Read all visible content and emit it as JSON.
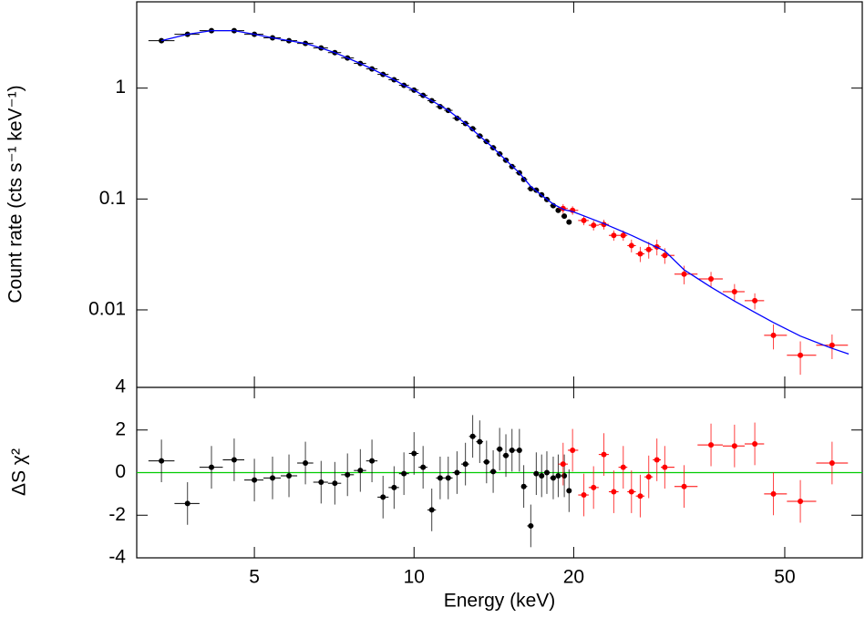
{
  "chart_data": [
    {
      "type": "scatter",
      "ylabel": "Count rate (cts s⁻¹ keV⁻¹)",
      "log_y": true,
      "log_x": true,
      "xlim": [
        3,
        70
      ],
      "ylim": [
        0.002,
        6
      ],
      "yticks": [
        1,
        0.1,
        0.01
      ],
      "series": [
        {
          "color": "#000000",
          "x": [
            3.34,
            3.74,
            4.15,
            4.58,
            5.0,
            5.41,
            5.81,
            6.24,
            6.68,
            7.09,
            7.49,
            7.92,
            8.33,
            8.74,
            9.17,
            9.57,
            10.0,
            10.4,
            10.8,
            11.2,
            11.6,
            12.05,
            12.5,
            12.9,
            13.3,
            13.7,
            14.1,
            14.5,
            14.9,
            15.3,
            15.8,
            16.1,
            16.6,
            17.0,
            17.4,
            17.8,
            18.3,
            18.7,
            19.2,
            19.6
          ],
          "values": [
            2.68,
            3.06,
            3.3,
            3.3,
            3.06,
            2.84,
            2.68,
            2.53,
            2.3,
            2.09,
            1.87,
            1.67,
            1.49,
            1.33,
            1.19,
            1.06,
            0.96,
            0.86,
            0.77,
            0.68,
            0.63,
            0.535,
            0.48,
            0.43,
            0.37,
            0.33,
            0.29,
            0.255,
            0.224,
            0.196,
            0.172,
            0.15,
            0.124,
            0.12,
            0.109,
            0.099,
            0.087,
            0.079,
            0.07,
            0.062
          ]
        },
        {
          "color": "#ff0000",
          "x": [
            19.1,
            19.9,
            20.9,
            21.8,
            22.8,
            23.8,
            24.8,
            25.7,
            26.7,
            27.7,
            28.7,
            29.7,
            32.3,
            36.3,
            40.2,
            43.9,
            47.6,
            53.5,
            61.4
          ],
          "values": [
            0.082,
            0.079,
            0.064,
            0.058,
            0.059,
            0.047,
            0.047,
            0.038,
            0.032,
            0.035,
            0.037,
            0.031,
            0.021,
            0.019,
            0.0146,
            0.0121,
            0.0059,
            0.0039,
            0.0048
          ],
          "yerr": [
            0.008,
            0.007,
            0.006,
            0.006,
            0.006,
            0.005,
            0.005,
            0.005,
            0.005,
            0.006,
            0.006,
            0.005,
            0.004,
            0.003,
            0.0025,
            0.002,
            0.0015,
            0.0013,
            0.0012
          ]
        },
        {
          "color": "#0000ff",
          "style": "line",
          "x": [
            3.34,
            3.74,
            4.15,
            4.58,
            5.0,
            5.41,
            5.81,
            6.24,
            6.68,
            7.09,
            7.49,
            7.92,
            8.33,
            8.74,
            9.17,
            9.57,
            10.0,
            10.8,
            11.6,
            12.5,
            13.3,
            14.1,
            14.9,
            15.8,
            16.6,
            17.4,
            18.3,
            19.2,
            19.9,
            22.8,
            25.7,
            29.7,
            32.3,
            36.3,
            40.2,
            43.9,
            47.6,
            53.5,
            61.4,
            66
          ],
          "values": [
            2.68,
            3.06,
            3.3,
            3.3,
            3.06,
            2.84,
            2.68,
            2.53,
            2.3,
            2.09,
            1.87,
            1.67,
            1.49,
            1.33,
            1.19,
            1.06,
            0.96,
            0.77,
            0.63,
            0.48,
            0.37,
            0.29,
            0.224,
            0.172,
            0.13,
            0.108,
            0.09,
            0.08,
            0.077,
            0.06,
            0.047,
            0.034,
            0.023,
            0.016,
            0.012,
            0.0095,
            0.0077,
            0.0058,
            0.0045,
            0.004
          ]
        }
      ]
    },
    {
      "type": "scatter",
      "xlabel": "Energy (keV)",
      "ylabel": "ΔS χ²",
      "log_x": true,
      "xlim": [
        3,
        70
      ],
      "xticks": [
        5,
        10,
        20,
        50
      ],
      "ylim": [
        -4,
        4
      ],
      "yticks": [
        -4,
        -2,
        0,
        2,
        4
      ],
      "reference_line": {
        "value": 0,
        "color": "#00cc00"
      },
      "series": [
        {
          "color": "#000000",
          "yerr": 1,
          "x": [
            3.34,
            3.74,
            4.15,
            4.58,
            5.0,
            5.41,
            5.81,
            6.24,
            6.68,
            7.09,
            7.49,
            7.92,
            8.33,
            8.74,
            9.17,
            9.57,
            10.0,
            10.4,
            10.8,
            11.2,
            11.6,
            12.05,
            12.5,
            12.9,
            13.3,
            13.7,
            14.1,
            14.5,
            14.9,
            15.3,
            15.8,
            16.1,
            16.6,
            17.0,
            17.4,
            17.8,
            18.3,
            18.7,
            19.2,
            19.6
          ],
          "values": [
            0.55,
            -1.45,
            0.25,
            0.6,
            -0.35,
            -0.25,
            -0.15,
            0.45,
            -0.45,
            -0.5,
            -0.1,
            0.1,
            0.55,
            -1.15,
            -0.7,
            -0.05,
            0.9,
            0.25,
            -1.75,
            -0.25,
            -0.25,
            0.0,
            0.4,
            1.7,
            1.45,
            0.5,
            0.05,
            1.1,
            0.8,
            1.05,
            1.05,
            -0.65,
            -2.5,
            -0.05,
            -0.15,
            0.0,
            -0.25,
            -0.15,
            -0.15,
            -0.85
          ]
        },
        {
          "color": "#ff0000",
          "yerr": 1,
          "x": [
            19.1,
            19.9,
            20.9,
            21.8,
            22.8,
            23.8,
            24.8,
            25.7,
            26.7,
            27.7,
            28.7,
            29.7,
            32.3,
            36.3,
            40.2,
            43.9,
            47.6,
            53.5,
            61.4
          ],
          "values": [
            0.4,
            1.05,
            -1.05,
            -0.7,
            0.85,
            -0.9,
            0.25,
            -0.9,
            -1.1,
            -0.2,
            0.6,
            0.25,
            -0.65,
            1.3,
            1.25,
            1.35,
            -1.0,
            -1.35,
            0.45
          ]
        }
      ]
    }
  ]
}
